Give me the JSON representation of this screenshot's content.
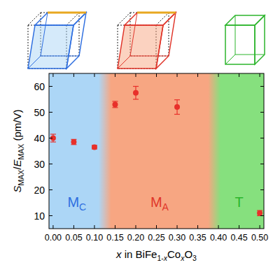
{
  "chart_data": {
    "type": "scatter",
    "xlabel": [
      {
        "text": "x",
        "style": "italic"
      },
      {
        "text": " in BiFe",
        "style": "normal"
      },
      {
        "text": "1-",
        "style": "sub"
      },
      {
        "text": "x",
        "style": "sub-italic"
      },
      {
        "text": "Co",
        "style": "normal"
      },
      {
        "text": "x",
        "style": "sub-italic"
      },
      {
        "text": "O",
        "style": "normal"
      },
      {
        "text": "3",
        "style": "sub"
      }
    ],
    "ylabel": [
      {
        "text": "S",
        "style": "italic"
      },
      {
        "text": "MAX",
        "style": "sub"
      },
      {
        "text": "/",
        "style": "normal"
      },
      {
        "text": "E",
        "style": "italic"
      },
      {
        "text": "MAX",
        "style": "sub"
      },
      {
        "text": " (pm/V)",
        "style": "normal"
      }
    ],
    "x": [
      0,
      0.05,
      0.1,
      0.15,
      0.2,
      0.3,
      0.5
    ],
    "values": [
      40,
      38.5,
      36.5,
      53,
      57.5,
      52,
      11
    ],
    "errors": [
      1.5,
      1,
      0.7,
      1.2,
      2.5,
      2.8,
      1
    ],
    "color": "#e8302a",
    "marker": "circle",
    "xlim": [
      -0.01,
      0.51
    ],
    "ylim": [
      5,
      65
    ],
    "xticks": [
      {
        "value": 0,
        "label": "0.00"
      },
      {
        "value": 0.05,
        "label": "0.05"
      },
      {
        "value": 0.1,
        "label": "0.10"
      },
      {
        "value": 0.15,
        "label": "0.15"
      },
      {
        "value": 0.2,
        "label": "0.20"
      },
      {
        "value": 0.25,
        "label": "0.25"
      },
      {
        "value": 0.3,
        "label": "0.30"
      },
      {
        "value": 0.35,
        "label": "0.35"
      },
      {
        "value": 0.4,
        "label": "0.40"
      },
      {
        "value": 0.45,
        "label": "0.45"
      },
      {
        "value": 0.5,
        "label": "0.50"
      }
    ],
    "yticks": [
      10,
      20,
      30,
      40,
      50,
      60
    ],
    "regions": [
      {
        "label": "M",
        "subscript": "C",
        "start": -0.01,
        "end": 0.125,
        "color": "#acd6f6",
        "label_color": "#2f6fe0"
      },
      {
        "label": "M",
        "subscript": "A",
        "start": 0.125,
        "end": 0.39,
        "color": "#f7a682",
        "label_color": "#e0352a"
      },
      {
        "label": "T",
        "subscript": "",
        "start": 0.39,
        "end": 0.51,
        "color": "#86e07e",
        "label_color": "#2cb52c"
      }
    ]
  }
}
